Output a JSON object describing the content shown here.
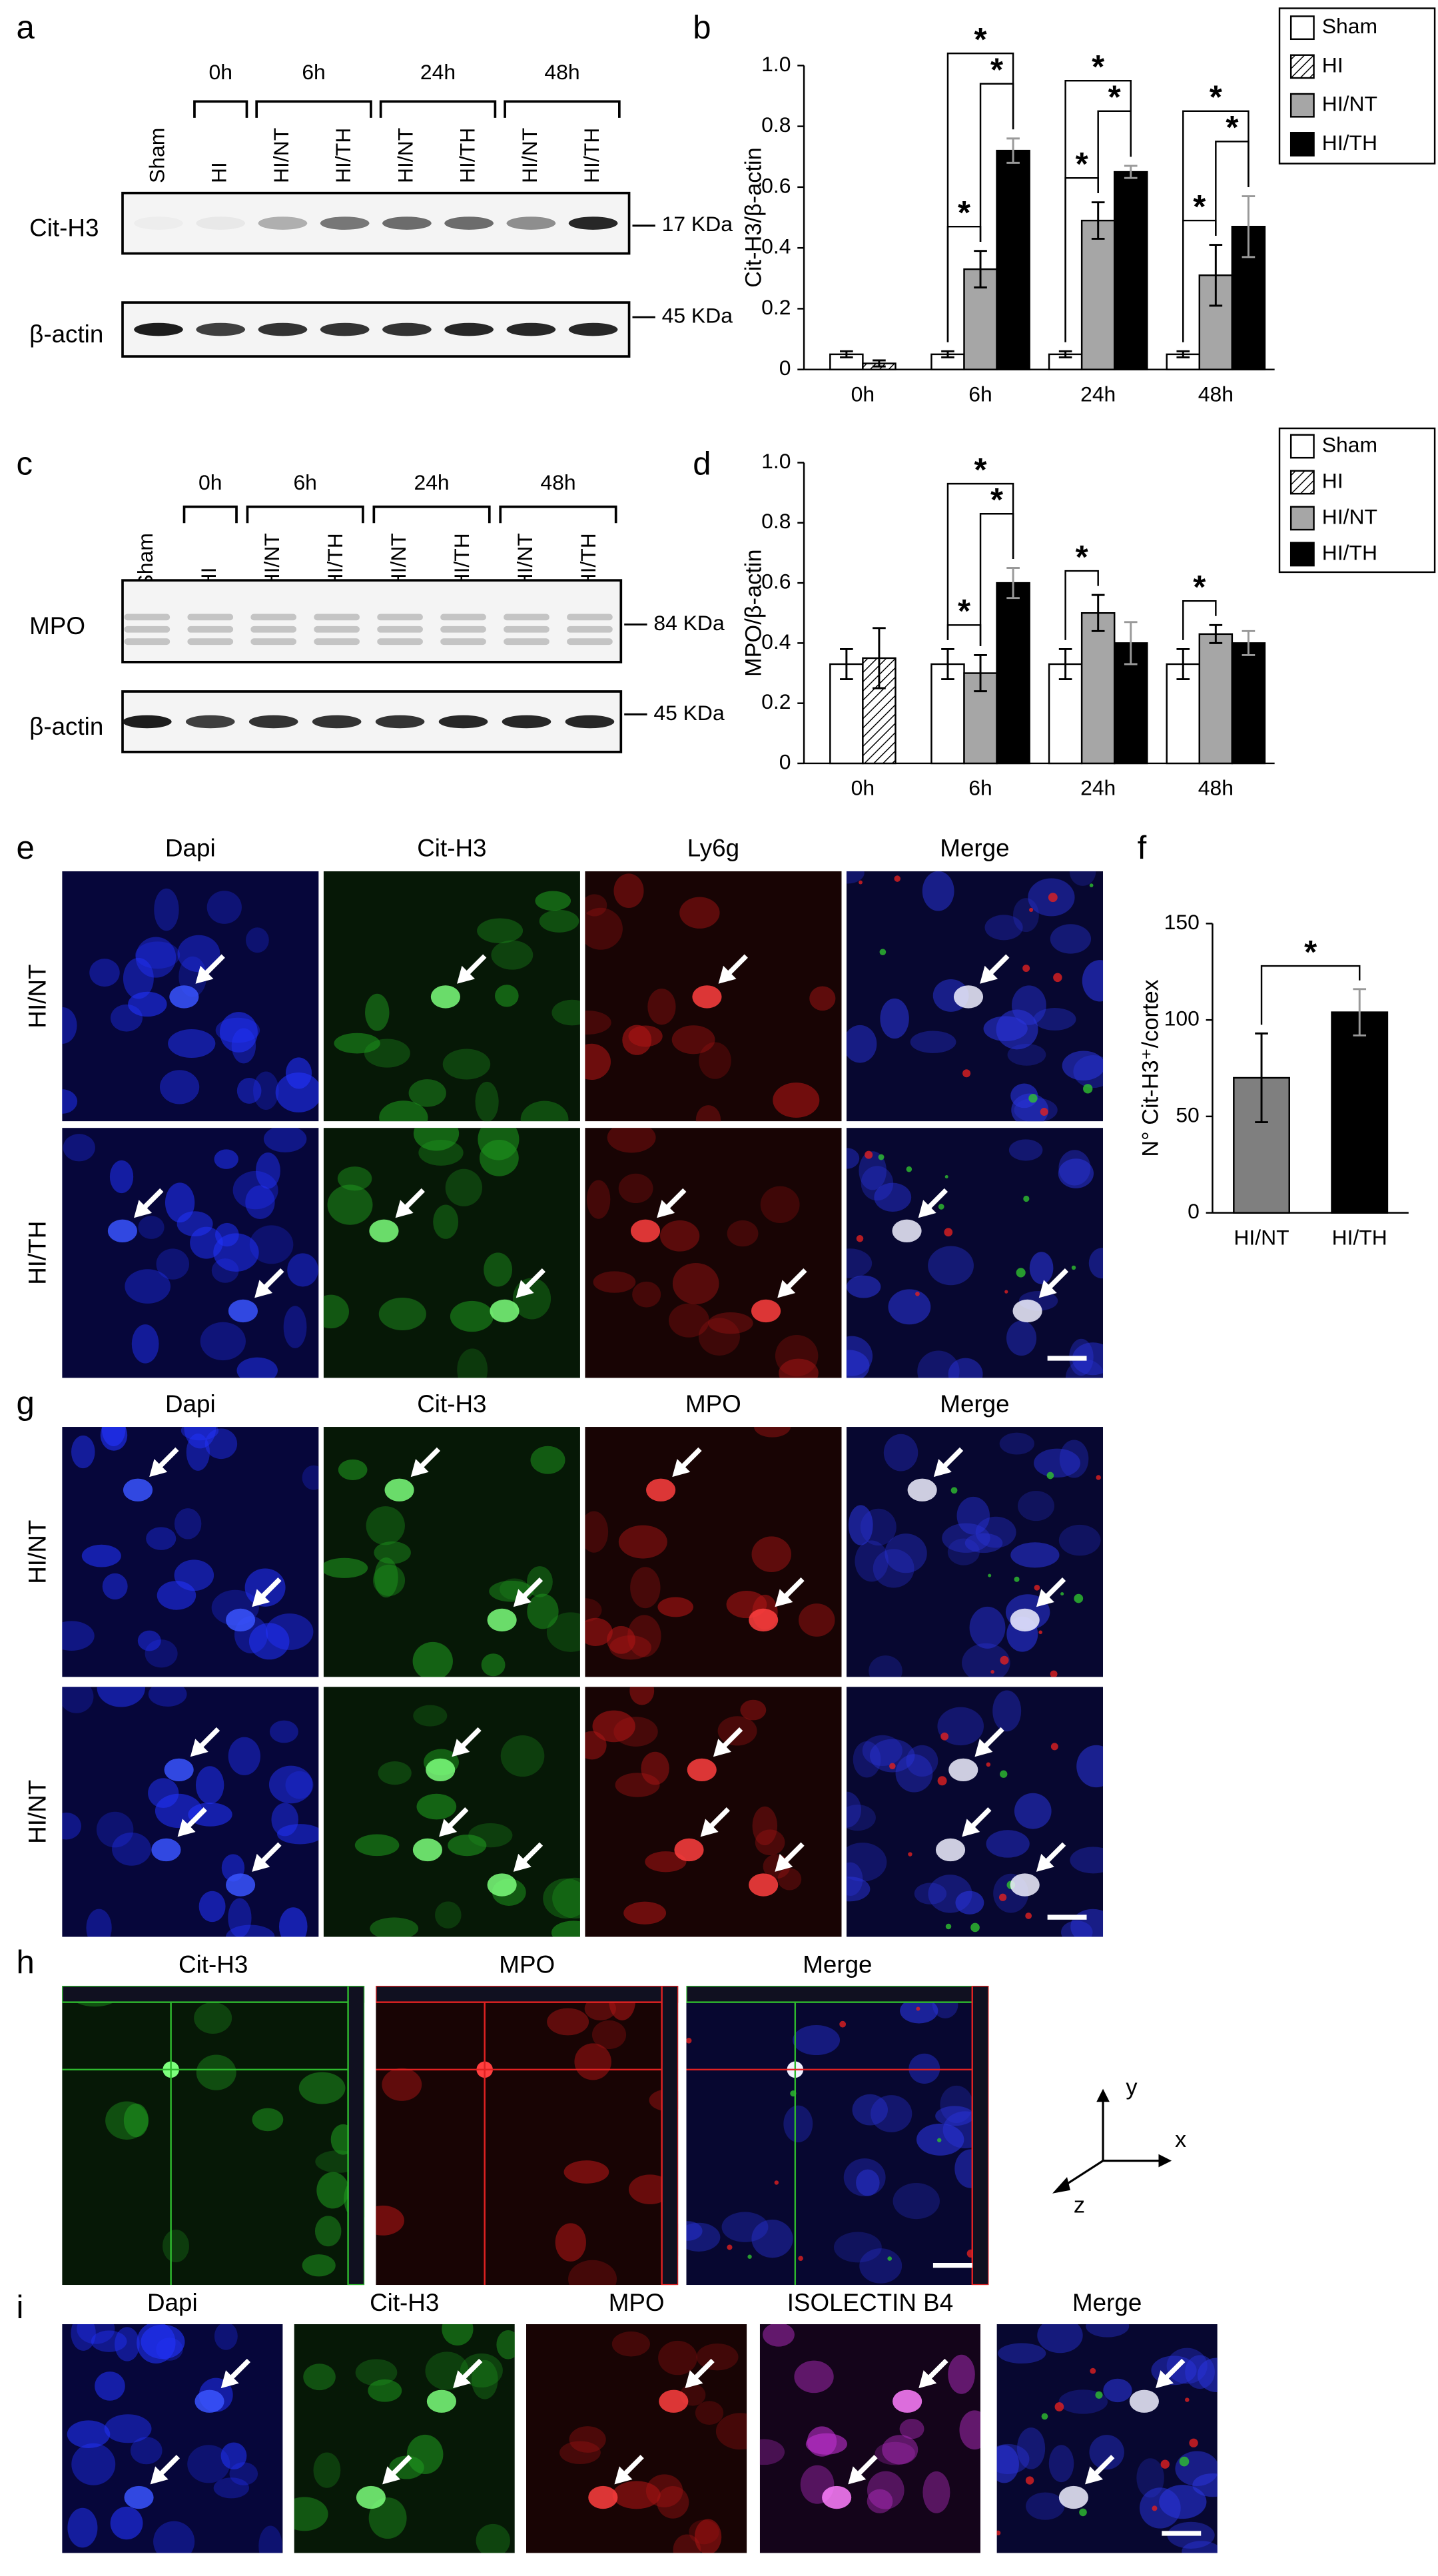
{
  "blots": [
    {
      "panel": "a",
      "timepoints": [
        "0h",
        "6h",
        "24h",
        "48h"
      ],
      "lanes": [
        "Sham",
        "HI",
        "HI/NT",
        "HI/TH",
        "HI/NT",
        "HI/TH",
        "HI/NT",
        "HI/TH"
      ],
      "rows": [
        {
          "name": "Cit-H3",
          "size": "17 KDa"
        },
        {
          "name": "β-actin",
          "size": "45 KDa"
        }
      ]
    },
    {
      "panel": "c",
      "timepoints": [
        "0h",
        "6h",
        "24h",
        "48h"
      ],
      "lanes": [
        "Sham",
        "HI",
        "HI/NT",
        "HI/TH",
        "HI/NT",
        "HI/TH",
        "HI/NT",
        "HI/TH"
      ],
      "rows": [
        {
          "name": "MPO",
          "size": "84 KDa"
        },
        {
          "name": "β-actin",
          "size": "45 KDa"
        }
      ]
    }
  ],
  "chart_data": [
    {
      "type": "bar",
      "panel": "b",
      "y_label": "Cit-H3/β-actin",
      "categories": [
        "0h",
        "6h",
        "24h",
        "48h"
      ],
      "series": [
        {
          "name": "Sham",
          "color": "#ffffff",
          "values": [
            0.05,
            0.05,
            0.05,
            0.05
          ],
          "errors": [
            0.01,
            0.01,
            0.01,
            0.01
          ]
        },
        {
          "name": "HI",
          "color": "#ffffff",
          "pattern": "hatch",
          "values": [
            0.02,
            null,
            null,
            null
          ],
          "errors": [
            0.01,
            null,
            null,
            null
          ]
        },
        {
          "name": "HI/NT",
          "color": "#a6a6a6",
          "values": [
            null,
            0.33,
            0.49,
            0.31
          ],
          "errors": [
            null,
            0.06,
            0.06,
            0.1
          ]
        },
        {
          "name": "HI/TH",
          "color": "#000000",
          "values": [
            null,
            0.72,
            0.65,
            0.47
          ],
          "errors": [
            null,
            0.04,
            0.02,
            0.1
          ]
        }
      ],
      "ylim": [
        0,
        1
      ],
      "yticks": [
        0,
        0.2,
        0.4,
        0.6,
        0.8,
        {
          "value": 1,
          "label": "1.0"
        }
      ],
      "legend": true,
      "annotations": [
        {
          "text": "*",
          "category": "6h",
          "series": [
            "Sham",
            "HI/NT"
          ]
        },
        {
          "text": "*",
          "category": "6h",
          "series": [
            "HI/NT",
            "HI/TH"
          ]
        },
        {
          "text": "*",
          "category": "6h",
          "series": [
            "Sham",
            "HI/TH"
          ]
        },
        {
          "text": "*",
          "category": "24h",
          "series": [
            "Sham",
            "HI/NT"
          ]
        },
        {
          "text": "*",
          "category": "24h",
          "series": [
            "HI/NT",
            "HI/TH"
          ]
        },
        {
          "text": "*",
          "category": "24h",
          "series": [
            "Sham",
            "HI/TH"
          ]
        },
        {
          "text": "*",
          "category": "48h",
          "series": [
            "Sham",
            "HI/NT"
          ]
        },
        {
          "text": "*",
          "category": "48h",
          "series": [
            "HI/NT",
            "HI/TH"
          ]
        },
        {
          "text": "*",
          "category": "48h",
          "series": [
            "Sham",
            "HI/TH"
          ]
        }
      ]
    },
    {
      "type": "bar",
      "panel": "d",
      "y_label": "MPO/β-actin",
      "categories": [
        "0h",
        "6h",
        "24h",
        "48h"
      ],
      "series": [
        {
          "name": "Sham",
          "color": "#ffffff",
          "values": [
            0.33,
            0.33,
            0.33,
            0.33
          ],
          "errors": [
            0.05,
            0.05,
            0.05,
            0.05
          ]
        },
        {
          "name": "HI",
          "color": "#ffffff",
          "pattern": "hatch",
          "values": [
            0.35,
            null,
            null,
            null
          ],
          "errors": [
            0.1,
            null,
            null,
            null
          ]
        },
        {
          "name": "HI/NT",
          "color": "#a6a6a6",
          "values": [
            null,
            0.3,
            0.5,
            0.43
          ],
          "errors": [
            null,
            0.06,
            0.06,
            0.03
          ]
        },
        {
          "name": "HI/TH",
          "color": "#000000",
          "values": [
            null,
            0.6,
            0.4,
            0.4
          ],
          "errors": [
            null,
            0.05,
            0.07,
            0.04
          ]
        }
      ],
      "ylim": [
        0,
        1
      ],
      "yticks": [
        0,
        0.2,
        0.4,
        0.6,
        0.8,
        {
          "value": 1,
          "label": "1.0"
        }
      ],
      "legend": true,
      "annotations": [
        {
          "text": "*",
          "category": "6h",
          "series": [
            "Sham",
            "HI/NT"
          ]
        },
        {
          "text": "*",
          "category": "6h",
          "series": [
            "HI/NT",
            "HI/TH"
          ]
        },
        {
          "text": "*",
          "category": "6h",
          "series": [
            "Sham",
            "HI/TH"
          ]
        },
        {
          "text": "*",
          "category": "24h",
          "series": [
            "Sham",
            "HI/NT"
          ]
        },
        {
          "text": "*",
          "category": "48h",
          "series": [
            "Sham",
            "HI/NT"
          ]
        }
      ]
    },
    {
      "type": "bar",
      "panel": "f",
      "y_label": "N° Cit-H3⁺/cortex",
      "categories": [
        "HI/NT",
        "HI/TH"
      ],
      "values": [
        70,
        104
      ],
      "errors": [
        23,
        12
      ],
      "colors": [
        "#7f7f7f",
        "#000000"
      ],
      "ylim": [
        0,
        150
      ],
      "yticks": [
        0,
        50,
        100,
        150
      ],
      "legend": false,
      "annotations": [
        {
          "text": "*",
          "categories": [
            "HI/NT",
            "HI/TH"
          ]
        }
      ]
    }
  ],
  "micrographs": [
    {
      "panel": "e",
      "columns": [
        "Dapi",
        "Cit-H3",
        "Ly6g",
        "Merge"
      ],
      "column_colors": [
        "#2a6fd6",
        "#2eb82e",
        "#e02222",
        "#000000"
      ],
      "rows": [
        "HI/NT",
        "HI/TH"
      ]
    },
    {
      "panel": "g",
      "columns": [
        "Dapi",
        "Cit-H3",
        "MPO",
        "Merge"
      ],
      "column_colors": [
        "#2a6fd6",
        "#2eb82e",
        "#e02222",
        "#000000"
      ],
      "rows": [
        "HI/NT",
        "HI/NT"
      ]
    },
    {
      "panel": "h",
      "columns": [
        "Cit-H3",
        "MPO",
        "Merge"
      ],
      "column_colors": [
        "#2eb82e",
        "#e02222",
        "#000000"
      ],
      "axes": [
        "y",
        "x",
        "z"
      ]
    },
    {
      "panel": "i",
      "columns": [
        "Dapi",
        "Cit-H3",
        "MPO",
        "ISOLECTIN B4",
        "Merge"
      ],
      "column_colors": [
        "#2a6fd6",
        "#2eb82e",
        "#e02222",
        "#c040d0",
        "#000000"
      ]
    }
  ]
}
